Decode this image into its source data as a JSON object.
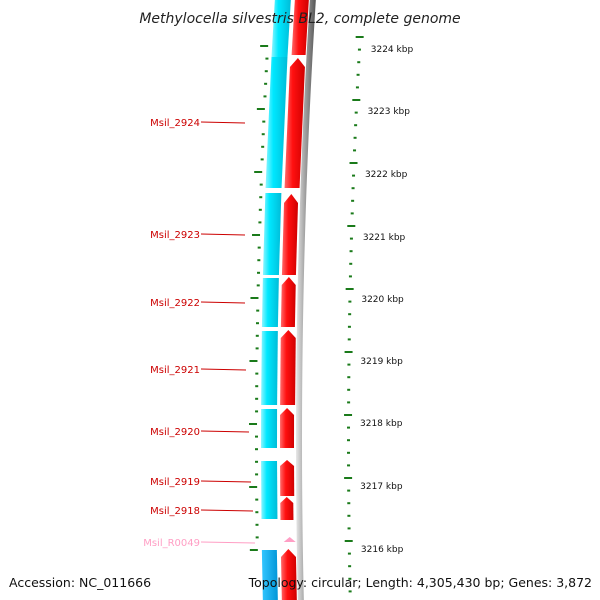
{
  "title": "Methylocella silvestris BL2, complete genome",
  "accession_text": "Accession: NC_011666",
  "topology_text": "Topology: circular; Length: 4,305,430 bp; Genes: 3,872",
  "colors": {
    "forward_gene": "#ff0000",
    "reverse_band": "#00e5ff",
    "label_cds": "#cc0000",
    "label_rna": "#ff9ec4",
    "tick": "#1a7a1a",
    "backbone": "#888888"
  },
  "kbp_labels": [
    "3224 kbp",
    "3223 kbp",
    "3222 kbp",
    "3221 kbp",
    "3220 kbp",
    "3219 kbp",
    "3218 kbp",
    "3217 kbp",
    "3216 kbp"
  ],
  "genes": [
    {
      "name": "Msil_2924",
      "type": "CDS"
    },
    {
      "name": "Msil_2923",
      "type": "CDS"
    },
    {
      "name": "Msil_2922",
      "type": "CDS"
    },
    {
      "name": "Msil_2921",
      "type": "CDS"
    },
    {
      "name": "Msil_2920",
      "type": "CDS"
    },
    {
      "name": "Msil_2919",
      "type": "CDS"
    },
    {
      "name": "Msil_2918",
      "type": "CDS"
    },
    {
      "name": "Msil_R0049",
      "type": "RNA"
    }
  ]
}
